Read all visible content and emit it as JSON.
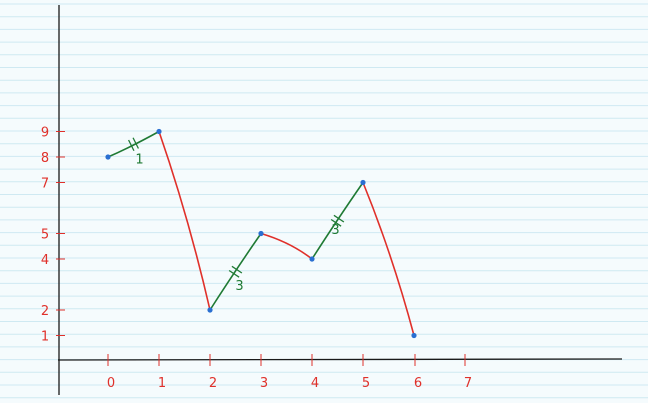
{
  "colors": {
    "paper": "#f5fbfd",
    "ruled_line": "#cfe9f2",
    "axis": "#1a1a1a",
    "tick_ink": "#e0302a",
    "rising_segment": "#1f7a34",
    "falling_segment": "#e0302a",
    "point": "#2a6fd1"
  },
  "chart_data": {
    "type": "line",
    "title": "",
    "xlabel": "",
    "ylabel": "",
    "grid": false,
    "xlim": [
      -1,
      10
    ],
    "ylim": [
      0,
      14.7
    ],
    "x_ticks": [
      "0",
      "1",
      "2",
      "3",
      "4",
      "5",
      "6",
      "7"
    ],
    "y_ticks": [
      "1",
      "2",
      "4",
      "5",
      "7",
      "8",
      "9"
    ],
    "series": [
      {
        "points": [
          {
            "x": 0,
            "y": 8
          },
          {
            "x": 1,
            "y": 9
          },
          {
            "x": 2,
            "y": 2
          },
          {
            "x": 3,
            "y": 5
          },
          {
            "x": 4,
            "y": 4
          },
          {
            "x": 5,
            "y": 7
          },
          {
            "x": 6,
            "y": 1
          }
        ]
      }
    ],
    "annotations": [
      {
        "segment": [
          0,
          1
        ],
        "text": "1"
      },
      {
        "segment": [
          2,
          3
        ],
        "text": "3"
      },
      {
        "segment": [
          4,
          5
        ],
        "text": "3"
      }
    ]
  }
}
